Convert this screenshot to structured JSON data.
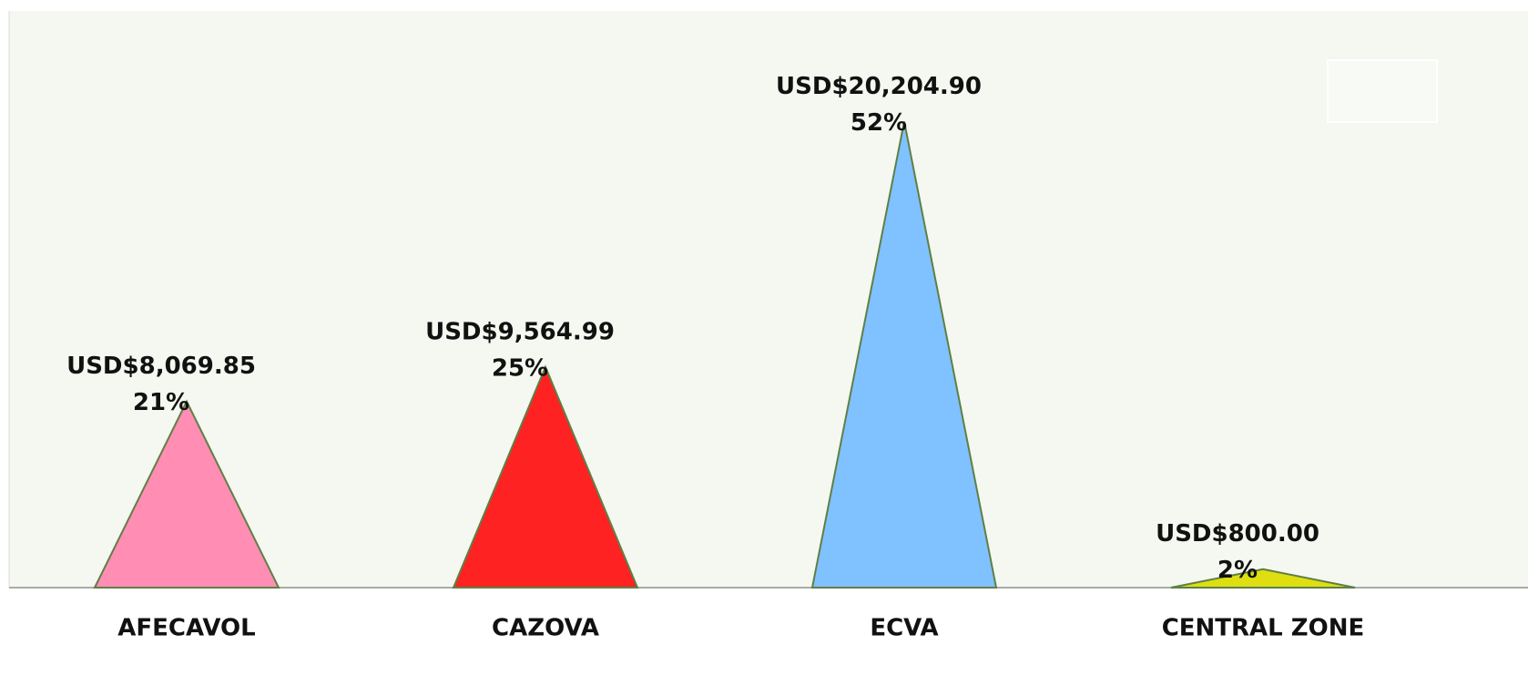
{
  "chart_data": {
    "type": "peak",
    "categories": [
      "AFECAVOL",
      "CAZOVA",
      "ECVA",
      "CENTRAL ZONE"
    ],
    "values": [
      8069.85,
      9564.99,
      20204.9,
      800.0
    ],
    "value_labels": [
      "USD$8,069.85",
      "USD$9,564.99",
      "USD$20,204.90",
      "USD$800.00"
    ],
    "share_labels": [
      "21%",
      "25%",
      "52%",
      "2%"
    ],
    "colors": [
      "#ff8db4",
      "#ff2222",
      "#80c1ff",
      "#dede10"
    ],
    "ylim": [
      0,
      25000
    ]
  }
}
